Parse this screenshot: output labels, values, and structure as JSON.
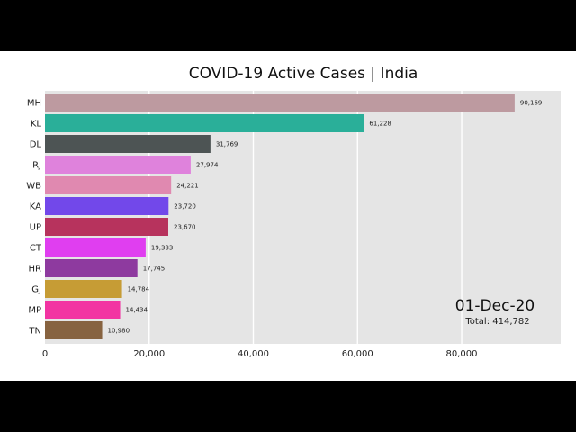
{
  "chart_data": {
    "type": "bar",
    "orientation": "horizontal",
    "title": "COVID-19 Active Cases | India",
    "categories": [
      "MH",
      "KL",
      "DL",
      "RJ",
      "WB",
      "KA",
      "UP",
      "CT",
      "HR",
      "GJ",
      "MP",
      "TN"
    ],
    "values": [
      90169,
      61228,
      31769,
      27974,
      24221,
      23720,
      23670,
      19333,
      17745,
      14784,
      14434,
      10980
    ],
    "value_labels": [
      "90,169",
      "61,228",
      "31,769",
      "27,974",
      "24,221",
      "23,720",
      "23,670",
      "19,333",
      "17,745",
      "14,784",
      "14,434",
      "10,980"
    ],
    "colors": [
      "#bd9aa0",
      "#2aaf99",
      "#4d5454",
      "#df82dc",
      "#e089b0",
      "#7248ea",
      "#b7335d",
      "#e03ef0",
      "#8e3a9f",
      "#c69c35",
      "#f234a2",
      "#876340"
    ],
    "x_ticks": [
      0,
      20000,
      40000,
      60000,
      80000
    ],
    "x_tick_labels": [
      "0",
      "20,000",
      "40,000",
      "60,000",
      "80,000"
    ],
    "xlim": [
      0,
      99000
    ],
    "grid": true,
    "background": "#e5e5e5",
    "date": "01-Dec-20",
    "total": "Total: 414,782"
  }
}
